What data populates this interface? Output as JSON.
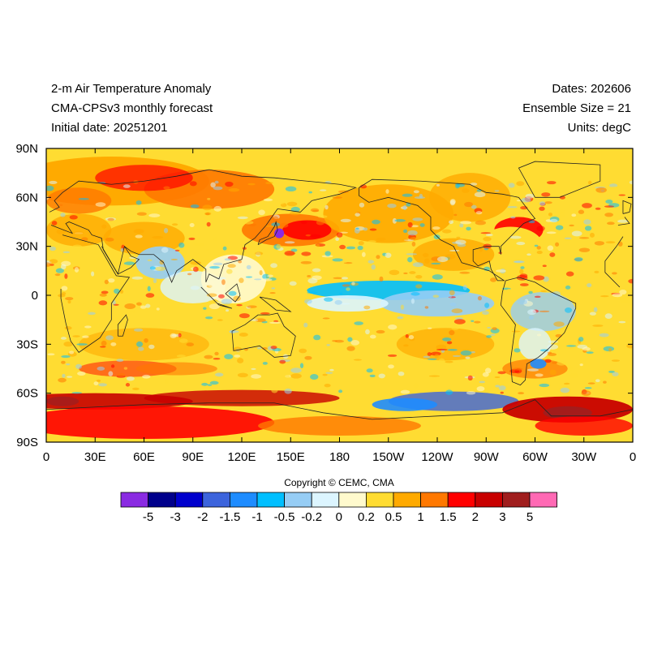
{
  "header": {
    "title": "2-m Air Temperature Anomaly",
    "subtitle": "CMA-CPSv3 monthly forecast",
    "initial_date": "Initial date: 20251201",
    "dates": "Dates: 202606",
    "ensemble": "Ensemble Size = 21",
    "units": "Units: degC"
  },
  "axes": {
    "lat_ticks": [
      "90N",
      "60N",
      "30N",
      "0",
      "30S",
      "60S",
      "90S"
    ],
    "lon_ticks": [
      "0",
      "30E",
      "60E",
      "90E",
      "120E",
      "150E",
      "180",
      "150W",
      "120W",
      "90W",
      "60W",
      "30W",
      "0"
    ]
  },
  "copyright": "Copyright © CEMC, CMA",
  "colorbar": {
    "labels": [
      "-5",
      "-3",
      "-2",
      "-1.5",
      "-1",
      "-0.5",
      "-0.2",
      "0",
      "0.2",
      "0.5",
      "1",
      "1.5",
      "2",
      "3",
      "5"
    ],
    "colors": [
      "#8a2be2",
      "#00008b",
      "#0000cd",
      "#3c64dc",
      "#1e8cff",
      "#00bfff",
      "#96cdf5",
      "#dcf5ff",
      "#fffacd",
      "#ffdc32",
      "#ffaa00",
      "#ff7800",
      "#ff0000",
      "#c80000",
      "#a01e1e",
      "#ff69b4"
    ]
  },
  "colors": {
    "land_outline": "#222222",
    "background_anomaly": "#ffaa00"
  }
}
